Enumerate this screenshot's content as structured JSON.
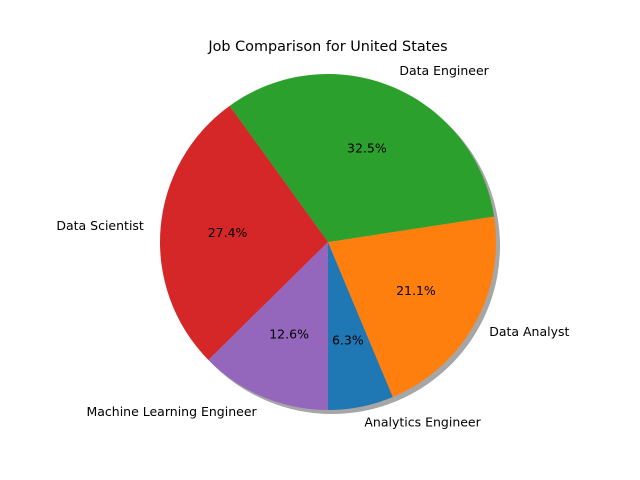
{
  "chart_data": {
    "type": "pie",
    "title": "Job Comparison for United States",
    "start_angle_deg": -90,
    "direction": "counterclockwise",
    "shadow": true,
    "slices": [
      {
        "label": "Analytics Engineer",
        "value": 6.3,
        "pct_label": "6.3%",
        "color": "#1f77b4"
      },
      {
        "label": "Data Analyst",
        "value": 21.1,
        "pct_label": "21.1%",
        "color": "#ff7f0e"
      },
      {
        "label": "Data Engineer",
        "value": 32.5,
        "pct_label": "32.5%",
        "color": "#2ca02c"
      },
      {
        "label": "Data Scientist",
        "value": 27.4,
        "pct_label": "27.4%",
        "color": "#d62728"
      },
      {
        "label": "Machine Learning Engineer",
        "value": 12.6,
        "pct_label": "12.6%",
        "color": "#9467bd"
      }
    ]
  }
}
